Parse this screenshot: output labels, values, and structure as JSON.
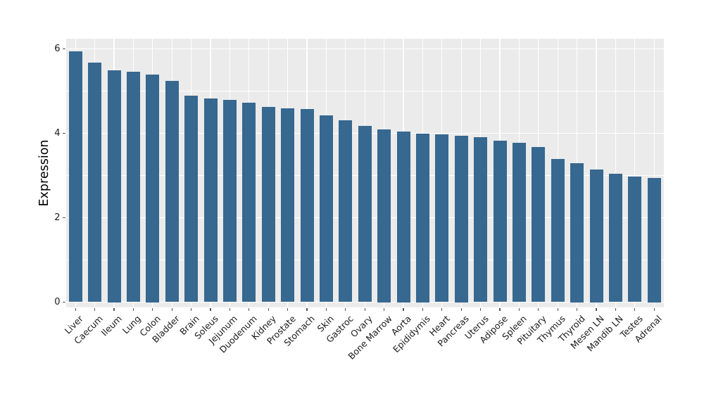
{
  "chart_data": {
    "type": "bar",
    "title": "",
    "xlabel": "",
    "ylabel": "Expression",
    "ylim": [
      0,
      6.25
    ],
    "yticks_major": [
      0,
      2,
      4,
      6
    ],
    "yticks_minor": [
      1,
      3,
      5
    ],
    "grid": "major-and-minor-horizontal, major-vertical-per-category",
    "legend": "none",
    "bar_color": "#366890",
    "panel_background": "#EBEBEB",
    "gridline_color": "#FFFFFF",
    "categories": [
      "Liver",
      "Caecum",
      "Ileum",
      "Lung",
      "Colon",
      "Bladder",
      "Brain",
      "Soleus",
      "Jejunum",
      "Duodenum",
      "Kidney",
      "Prostate",
      "Stomach",
      "Skin",
      "Gastroc",
      "Ovary",
      "Bone Marrow",
      "Aorta",
      "Epididymis",
      "Heart",
      "Pancreas",
      "Uterus",
      "Adipose",
      "Spleen",
      "Pituitary",
      "Thymus",
      "Thyroid",
      "Mesen LN",
      "Mandib LN",
      "Testes",
      "Adrenal"
    ],
    "values": [
      5.94,
      5.67,
      5.5,
      5.46,
      5.4,
      5.24,
      4.89,
      4.82,
      4.79,
      4.72,
      4.62,
      4.59,
      4.57,
      4.43,
      4.31,
      4.18,
      4.1,
      4.05,
      4.0,
      3.97,
      3.95,
      3.91,
      3.82,
      3.78,
      3.67,
      3.39,
      3.3,
      3.15,
      3.04,
      2.98,
      2.95
    ]
  }
}
